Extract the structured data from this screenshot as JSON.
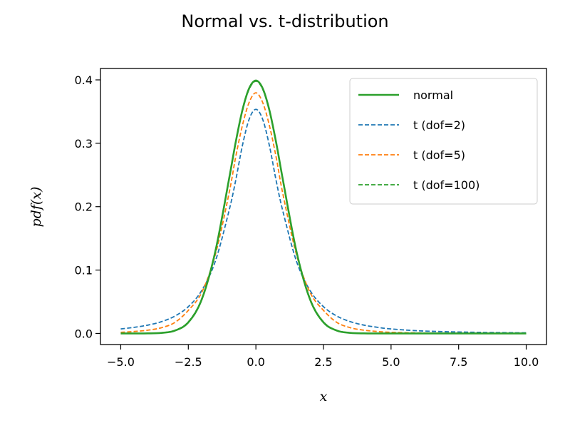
{
  "chart_data": {
    "type": "line",
    "title": "Normal vs. t-distribution",
    "xlabel": "x",
    "ylabel": "pdf(x)",
    "xlim": [
      -5.75,
      10.75
    ],
    "ylim": [
      -0.0175,
      0.418
    ],
    "xticks": [
      -5.0,
      -2.5,
      0.0,
      2.5,
      5.0,
      7.5,
      10.0
    ],
    "xtick_labels": [
      "−5.0",
      "−2.5",
      "0.0",
      "2.5",
      "5.0",
      "7.5",
      "10.0"
    ],
    "yticks": [
      0.0,
      0.1,
      0.2,
      0.3,
      0.4
    ],
    "ytick_labels": [
      "0.0",
      "0.1",
      "0.2",
      "0.3",
      "0.4"
    ],
    "grid": false,
    "legend_position": "top-right",
    "x": [
      -5.0,
      -4.5,
      -4.0,
      -3.5,
      -3.0,
      -2.5,
      -2.0,
      -1.5,
      -1.0,
      -0.75,
      -0.5,
      -0.25,
      0.0,
      0.25,
      0.5,
      0.75,
      1.0,
      1.5,
      2.0,
      2.5,
      3.0,
      3.5,
      4.0,
      4.5,
      5.0,
      6.0,
      7.0,
      8.0,
      9.0,
      10.0
    ],
    "series": [
      {
        "name": "normal",
        "color": "#2ca02c",
        "style": "solid",
        "values": [
          0.0,
          0.0,
          0.0001,
          0.0009,
          0.0044,
          0.0175,
          0.054,
          0.1295,
          0.242,
          0.3011,
          0.3521,
          0.3867,
          0.3989,
          0.3867,
          0.3521,
          0.3011,
          0.242,
          0.1295,
          0.054,
          0.0175,
          0.0044,
          0.0009,
          0.0001,
          0.0,
          0.0,
          0.0,
          0.0,
          0.0,
          0.0,
          0.0
        ]
      },
      {
        "name": "t (dof=2)",
        "color": "#1f77b4",
        "style": "dashed",
        "values": [
          0.0071,
          0.0097,
          0.0131,
          0.0185,
          0.0273,
          0.0422,
          0.068,
          0.114,
          0.1925,
          0.2409,
          0.2962,
          0.3379,
          0.3536,
          0.3379,
          0.2962,
          0.2409,
          0.1925,
          0.114,
          0.068,
          0.0422,
          0.0273,
          0.0185,
          0.0131,
          0.0097,
          0.0071,
          0.0042,
          0.0028,
          0.0019,
          0.0013,
          0.001
        ]
      },
      {
        "name": "t (dof=5)",
        "color": "#ff7f0e",
        "style": "dashed",
        "values": [
          0.0018,
          0.0031,
          0.0051,
          0.009,
          0.0173,
          0.0364,
          0.065,
          0.1245,
          0.2197,
          0.2778,
          0.3279,
          0.3645,
          0.3796,
          0.3645,
          0.3279,
          0.2778,
          0.2197,
          0.1245,
          0.065,
          0.0364,
          0.0173,
          0.009,
          0.0051,
          0.0031,
          0.0018,
          0.0008,
          0.0004,
          0.0002,
          0.0001,
          0.0
        ]
      },
      {
        "name": "t (dof=100)",
        "color": "#2ca02c",
        "style": "dashed",
        "values": [
          0.0,
          0.0,
          0.0002,
          0.0011,
          0.0049,
          0.0183,
          0.0552,
          0.1304,
          0.2417,
          0.3003,
          0.3509,
          0.3853,
          0.3979,
          0.3853,
          0.3509,
          0.3003,
          0.2417,
          0.1304,
          0.0552,
          0.0183,
          0.0049,
          0.0011,
          0.0002,
          0.0,
          0.0,
          0.0,
          0.0,
          0.0,
          0.0,
          0.0
        ]
      }
    ]
  }
}
